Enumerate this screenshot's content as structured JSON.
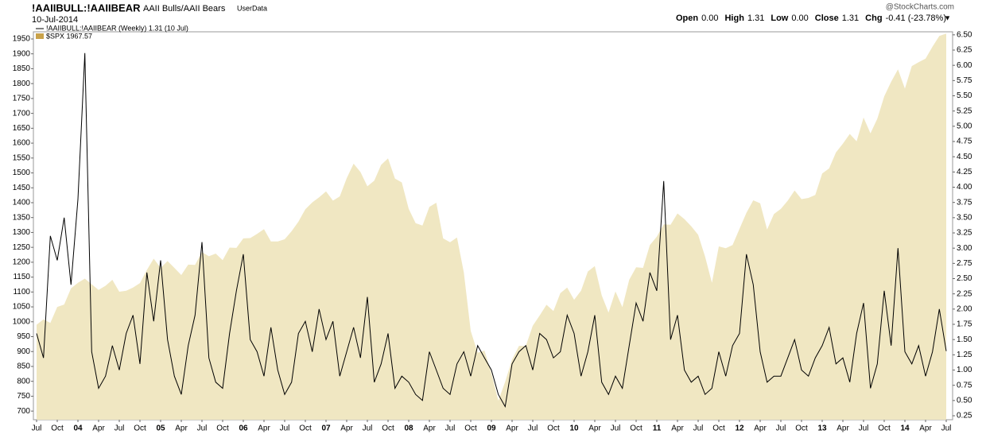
{
  "header": {
    "symbol": "!AAIIBULL:!AAIIBEAR",
    "description": "AAII Bulls/AAII Bears",
    "source": "UserData",
    "date": "10-Jul-2014",
    "brand": "@StockCharts.com",
    "quote": [
      {
        "label": "Open",
        "value": "0.00"
      },
      {
        "label": "High",
        "value": "1.31"
      },
      {
        "label": "Low",
        "value": "0.00"
      },
      {
        "label": "Close",
        "value": "1.31"
      },
      {
        "label": "Chg",
        "value": "-0.41 (-23.78%)"
      }
    ]
  },
  "chart_data": {
    "type": "line",
    "categories": [
      "Jul",
      null,
      null,
      "Oct",
      null,
      null,
      "04",
      null,
      null,
      "Apr",
      null,
      null,
      "Jul",
      null,
      null,
      "Oct",
      null,
      null,
      "05",
      null,
      null,
      "Apr",
      null,
      null,
      "Jul",
      null,
      null,
      "Oct",
      null,
      null,
      "06",
      null,
      null,
      "Apr",
      null,
      null,
      "Jul",
      null,
      null,
      "Oct",
      null,
      null,
      "07",
      null,
      null,
      "Apr",
      null,
      null,
      "Jul",
      null,
      null,
      "Oct",
      null,
      null,
      "08",
      null,
      null,
      "Apr",
      null,
      null,
      "Jul",
      null,
      null,
      "Oct",
      null,
      null,
      "09",
      null,
      null,
      "Apr",
      null,
      null,
      "Jul",
      null,
      null,
      "Oct",
      null,
      null,
      "10",
      null,
      null,
      "Apr",
      null,
      null,
      "Jul",
      null,
      null,
      "Oct",
      null,
      null,
      "11",
      null,
      null,
      "Apr",
      null,
      null,
      "Jul",
      null,
      null,
      "Oct",
      null,
      null,
      "12",
      null,
      null,
      "Apr",
      null,
      null,
      "Jul",
      null,
      null,
      "Oct",
      null,
      null,
      "13",
      null,
      null,
      "Apr",
      null,
      null,
      "Jul",
      null,
      null,
      "Oct",
      null,
      null,
      "14",
      null,
      null,
      "Apr",
      null,
      null,
      "Jul"
    ],
    "ylim": [
      671,
      1974
    ],
    "yticks": [
      700,
      750,
      800,
      850,
      900,
      950,
      1000,
      1050,
      1100,
      1150,
      1200,
      1250,
      1300,
      1350,
      1400,
      1450,
      1500,
      1550,
      1600,
      1650,
      1700,
      1750,
      1800,
      1850,
      1900,
      1950
    ],
    "y2lim": [
      0.185,
      6.55
    ],
    "y2ticks": [
      {
        "value": 0.25,
        "label": "0.25"
      },
      {
        "value": 0.5,
        "label": "0.50"
      },
      {
        "value": 0.75,
        "label": "0.75"
      },
      {
        "value": 1,
        "label": "1.00"
      },
      {
        "value": 1.25,
        "label": "1.25"
      },
      {
        "value": 1.5,
        "label": "1.50"
      },
      {
        "value": 1.75,
        "label": "1.75"
      },
      {
        "value": 2,
        "label": "2.00"
      },
      {
        "value": 2.25,
        "label": "2.25"
      },
      {
        "value": 2.5,
        "label": "2.50"
      },
      {
        "value": 2.75,
        "label": "2.75"
      },
      {
        "value": 3,
        "label": "3.00"
      },
      {
        "value": 3.25,
        "label": "3.25"
      },
      {
        "value": 3.5,
        "label": "3.50"
      },
      {
        "value": 3.75,
        "label": "3.75"
      },
      {
        "value": 4,
        "label": "4.00"
      },
      {
        "value": 4.25,
        "label": "4.25"
      },
      {
        "value": 4.5,
        "label": "4.50"
      },
      {
        "value": 4.75,
        "label": "4.75"
      },
      {
        "value": 5,
        "label": "5.00"
      },
      {
        "value": 5.25,
        "label": "5.25"
      },
      {
        "value": 5.5,
        "label": "5.50"
      },
      {
        "value": 5.75,
        "label": "5.75"
      },
      {
        "value": 6,
        "label": "6.00"
      },
      {
        "value": 6.25,
        "label": "6.25"
      },
      {
        "value": 6.5,
        "label": "6.50"
      }
    ],
    "series": [
      {
        "name": "$SPX 1967.57",
        "kind": "area",
        "color": "#f0e7c2",
        "label_color": "#c9a24a",
        "values": [
          990,
          1008,
          996,
          1050,
          1058,
          1112,
          1131,
          1145,
          1126,
          1107,
          1121,
          1141,
          1101,
          1104,
          1115,
          1130,
          1174,
          1212,
          1181,
          1204,
          1181,
          1157,
          1192,
          1191,
          1234,
          1220,
          1229,
          1207,
          1249,
          1248,
          1280,
          1281,
          1295,
          1311,
          1270,
          1270,
          1277,
          1304,
          1336,
          1378,
          1401,
          1418,
          1438,
          1407,
          1421,
          1482,
          1531,
          1503,
          1455,
          1474,
          1527,
          1549,
          1481,
          1468,
          1379,
          1331,
          1323,
          1386,
          1400,
          1280,
          1267,
          1283,
          1166,
          969,
          896,
          903,
          826,
          735,
          798,
          873,
          919,
          919,
          987,
          1021,
          1057,
          1036,
          1096,
          1115,
          1074,
          1104,
          1169,
          1187,
          1089,
          1031,
          1102,
          1049,
          1141,
          1183,
          1181,
          1258,
          1286,
          1327,
          1326,
          1364,
          1345,
          1321,
          1292,
          1219,
          1131,
          1253,
          1247,
          1258,
          1312,
          1366,
          1408,
          1398,
          1310,
          1362,
          1379,
          1407,
          1441,
          1412,
          1416,
          1426,
          1498,
          1515,
          1569,
          1598,
          1631,
          1606,
          1686,
          1633,
          1682,
          1757,
          1806,
          1848,
          1783,
          1859,
          1872,
          1884,
          1924,
          1960,
          1968
        ]
      },
      {
        "name": "!AAIIBULL:!AAIIBEAR (Weekly) 1.31 (10 Jul)",
        "kind": "line",
        "color": "#000000",
        "label_color": "#000000",
        "axis": "y2",
        "values": [
          1.6,
          1.2,
          3.2,
          2.8,
          3.5,
          2.4,
          3.8,
          6.2,
          1.3,
          0.7,
          0.9,
          1.4,
          1.0,
          1.6,
          1.9,
          1.1,
          2.6,
          1.8,
          2.8,
          1.5,
          0.9,
          0.6,
          1.4,
          1.9,
          3.1,
          1.2,
          0.8,
          0.7,
          1.6,
          2.3,
          2.9,
          1.5,
          1.3,
          0.9,
          1.7,
          1.0,
          0.6,
          0.8,
          1.6,
          1.8,
          1.3,
          2.0,
          1.5,
          1.8,
          0.9,
          1.3,
          1.7,
          1.2,
          2.2,
          0.8,
          1.1,
          1.6,
          0.7,
          0.9,
          0.8,
          0.6,
          0.5,
          1.3,
          1.0,
          0.7,
          0.6,
          1.1,
          1.3,
          0.9,
          1.4,
          1.2,
          1.0,
          0.6,
          0.4,
          1.1,
          1.3,
          1.4,
          1.0,
          1.6,
          1.5,
          1.2,
          1.3,
          1.9,
          1.6,
          0.9,
          1.3,
          1.9,
          0.8,
          0.6,
          0.9,
          0.7,
          1.4,
          2.1,
          1.8,
          2.6,
          2.3,
          4.1,
          1.5,
          1.9,
          1.0,
          0.8,
          0.9,
          0.6,
          0.7,
          1.3,
          0.9,
          1.4,
          1.6,
          2.9,
          2.4,
          1.3,
          0.8,
          0.9,
          0.9,
          1.2,
          1.5,
          1.0,
          0.9,
          1.2,
          1.4,
          1.7,
          1.1,
          1.2,
          0.8,
          1.6,
          2.1,
          0.7,
          1.1,
          2.3,
          1.4,
          3.0,
          1.3,
          1.1,
          1.4,
          0.9,
          1.3,
          2.0,
          1.31
        ]
      }
    ]
  }
}
